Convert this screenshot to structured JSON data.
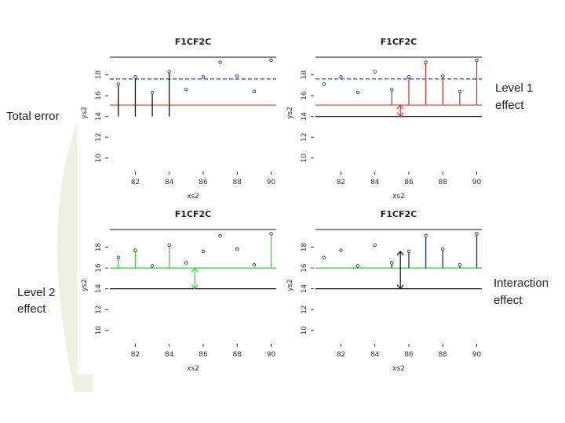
{
  "slide_labels": {
    "total_error": "Total error",
    "level1": [
      "Level 1",
      "effect"
    ],
    "level2": [
      "Level 2",
      "effect"
    ],
    "interaction": [
      "Interaction",
      "effect"
    ]
  },
  "chart_data": [
    {
      "type": "scatter",
      "title": "F1CF2C",
      "x_label": "xs2",
      "y_label": "ys2",
      "x": [
        81,
        82,
        83,
        84,
        85,
        86,
        87,
        88,
        89,
        90
      ],
      "values": [
        17.1,
        17.8,
        16.3,
        18.3,
        16.6,
        17.8,
        19.2,
        17.9,
        16.4,
        19.4
      ],
      "xlim": [
        80.5,
        90.3
      ],
      "ylim": [
        9,
        19.7
      ],
      "xticks": [
        82,
        84,
        86,
        88,
        90
      ],
      "yticks": [
        10,
        12,
        14,
        16,
        18
      ],
      "hlines": [
        {
          "value": 17.6,
          "color": "#1f3fbf",
          "dashed": true
        },
        {
          "value": 15.1,
          "color": "#d33a2c",
          "dashed": false
        }
      ],
      "stem_base": 14,
      "stem_color": "#111",
      "stems": [
        true,
        true,
        true,
        true,
        false,
        false,
        false,
        false,
        false,
        false
      ]
    },
    {
      "type": "scatter",
      "title": "F1CF2C",
      "x_label": "xs2",
      "y_label": "ys2",
      "x": [
        81,
        82,
        83,
        84,
        85,
        86,
        87,
        88,
        89,
        90
      ],
      "values": [
        17.1,
        17.8,
        16.3,
        18.3,
        16.6,
        17.8,
        19.2,
        17.9,
        16.4,
        19.4
      ],
      "xlim": [
        80.5,
        90.3
      ],
      "ylim": [
        9,
        19.7
      ],
      "xticks": [
        82,
        84,
        86,
        88,
        90
      ],
      "yticks": [
        10,
        12,
        14,
        16,
        18
      ],
      "hlines": [
        {
          "value": 17.6,
          "color": "#1f3fbf",
          "dashed": true
        },
        {
          "value": 15.1,
          "color": "#d33a2c",
          "dashed": false
        },
        {
          "value": 14,
          "color": "#111",
          "dashed": false
        }
      ],
      "stem_base": 15.1,
      "stem_color": "#d33a2c",
      "stems": [
        false,
        false,
        false,
        false,
        true,
        true,
        true,
        true,
        true,
        true
      ],
      "arrow": {
        "x": 85.5,
        "from": 14,
        "to": 15.1,
        "color": "#d33a2c"
      }
    },
    {
      "type": "scatter",
      "title": "F1CF2C",
      "x_label": "xs2",
      "y_label": "ys2",
      "x": [
        81,
        82,
        83,
        84,
        85,
        86,
        87,
        88,
        89,
        90
      ],
      "values": [
        17.0,
        17.7,
        16.2,
        18.2,
        16.5,
        17.6,
        19.1,
        17.8,
        16.3,
        19.3
      ],
      "xlim": [
        80.5,
        90.3
      ],
      "ylim": [
        9,
        19.7
      ],
      "xticks": [
        82,
        84,
        86,
        88,
        90
      ],
      "yticks": [
        10,
        12,
        14,
        16,
        18
      ],
      "hlines": [
        {
          "value": 16,
          "color": "#3ccf3c",
          "dashed": false
        },
        {
          "value": 14,
          "color": "#111",
          "dashed": false
        }
      ],
      "stem_base": 16,
      "stem_color": "#3ccf3c",
      "stems": [
        true,
        true,
        true,
        true,
        false,
        false,
        false,
        false,
        false,
        true
      ],
      "arrow": {
        "x": 85.5,
        "from": 14,
        "to": 16,
        "color": "#3ccf3c"
      }
    },
    {
      "type": "scatter",
      "title": "F1CF2C",
      "x_label": "xs2",
      "y_label": "ys2",
      "x": [
        81,
        82,
        83,
        84,
        85,
        86,
        87,
        88,
        89,
        90
      ],
      "values": [
        17.0,
        17.7,
        16.2,
        18.2,
        16.5,
        17.6,
        19.1,
        17.8,
        16.3,
        19.3
      ],
      "xlim": [
        80.5,
        90.3
      ],
      "ylim": [
        9,
        19.7
      ],
      "xticks": [
        82,
        84,
        86,
        88,
        90
      ],
      "yticks": [
        10,
        12,
        14,
        16,
        18
      ],
      "hlines": [
        {
          "value": 16,
          "color": "#3ccf3c",
          "dashed": false
        },
        {
          "value": 14,
          "color": "#111",
          "dashed": false
        }
      ],
      "stem_base": 16,
      "stem_color": "#1a2a8a",
      "stems": [
        false,
        false,
        false,
        false,
        true,
        true,
        true,
        true,
        true,
        true
      ],
      "arrow": {
        "x": 85.5,
        "from": 14,
        "to": 17.6,
        "color": "#111"
      }
    }
  ]
}
